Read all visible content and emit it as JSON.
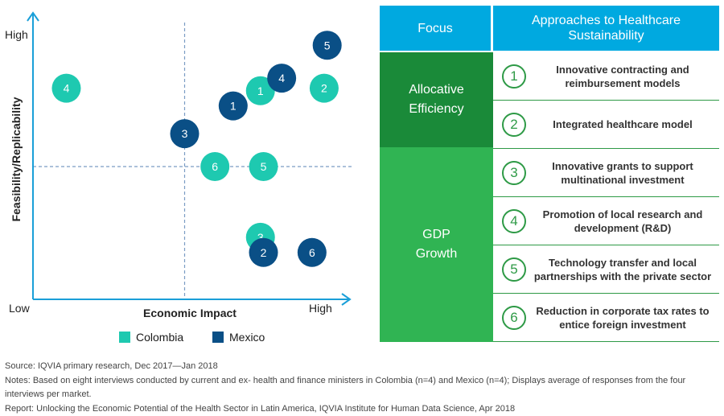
{
  "chart_data": {
    "type": "scatter",
    "xlabel": "Economic Impact",
    "ylabel": "Feasibility/Replicability",
    "x_low_label": "Low",
    "x_high_label": "High",
    "y_high_label": "High",
    "xlim": [
      0,
      10
    ],
    "ylim": [
      0,
      10
    ],
    "reference_lines": {
      "x": 5,
      "y": 5
    },
    "series": [
      {
        "name": "Colombia",
        "color": "#1ec9b0",
        "points": [
          {
            "label": "1",
            "x": 7.5,
            "y": 8.0
          },
          {
            "label": "2",
            "x": 9.6,
            "y": 8.1
          },
          {
            "label": "3",
            "x": 7.5,
            "y": 2.2
          },
          {
            "label": "4",
            "x": 1.1,
            "y": 8.1
          },
          {
            "label": "5",
            "x": 7.6,
            "y": 5.0
          },
          {
            "label": "6",
            "x": 6.0,
            "y": 5.0
          }
        ]
      },
      {
        "name": "Mexico",
        "color": "#0a4f86",
        "points": [
          {
            "label": "1",
            "x": 6.6,
            "y": 7.4
          },
          {
            "label": "2",
            "x": 7.6,
            "y": 1.6
          },
          {
            "label": "3",
            "x": 5.0,
            "y": 6.3
          },
          {
            "label": "4",
            "x": 8.2,
            "y": 8.5
          },
          {
            "label": "5",
            "x": 9.7,
            "y": 9.8
          },
          {
            "label": "6",
            "x": 9.2,
            "y": 1.6
          }
        ]
      }
    ]
  },
  "legend": {
    "colombia": "Colombia",
    "mexico": "Mexico"
  },
  "table": {
    "header_focus": "Focus",
    "header_approaches": "Approaches to Healthcare Sustainability",
    "groups": {
      "allocative": "Allocative Efficiency",
      "gdp": "GDP Growth"
    },
    "rows": [
      {
        "num": "1",
        "text": "Innovative contracting and reimbursement models"
      },
      {
        "num": "2",
        "text": "Integrated healthcare model"
      },
      {
        "num": "3",
        "text": "Innovative grants to support multinational investment"
      },
      {
        "num": "4",
        "text": "Promotion of local research and development (R&D)"
      },
      {
        "num": "5",
        "text": "Technology transfer and local partnerships with the private sector"
      },
      {
        "num": "6",
        "text": "Reduction in corporate tax rates to entice foreign investment"
      }
    ]
  },
  "footer": {
    "source": "Source: IQVIA primary research, Dec 2017—Jan 2018",
    "notes": "Notes: Based on eight interviews conducted by current and ex- health and finance ministers in Colombia (n=4) and Mexico (n=4); Displays average of responses from the four interviews per market.",
    "report": "Report: Unlocking the Economic Potential of the Health Sector in Latin America, IQVIA Institute for Human Data Science, Apr 2018"
  }
}
